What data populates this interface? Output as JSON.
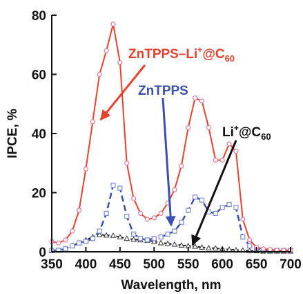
{
  "chart_data": {
    "type": "line",
    "xlabel": "Wavelength, nm",
    "ylabel": "IPCE, %",
    "xlim": [
      350,
      700
    ],
    "ylim": [
      0,
      80
    ],
    "xticks": [
      "350",
      "400",
      "450",
      "500",
      "550",
      "600",
      "650",
      "700"
    ],
    "yticks": [
      "0",
      "20",
      "40",
      "60",
      "80"
    ],
    "grid": false,
    "series": [
      {
        "name": "ZnTPPS–Li⁺@C₆₀",
        "color": "#e8412e",
        "marker": "circle",
        "x": [
          350,
          360,
          370,
          380,
          390,
          400,
          410,
          420,
          430,
          440,
          450,
          460,
          470,
          480,
          490,
          500,
          510,
          520,
          530,
          540,
          550,
          560,
          570,
          580,
          590,
          600,
          610,
          620,
          630,
          640,
          650,
          660,
          670,
          680,
          690,
          700
        ],
        "y": [
          3.5,
          3.0,
          4.0,
          7.0,
          14.0,
          28.0,
          44.0,
          60.0,
          68.0,
          77.0,
          64.0,
          30.0,
          18.0,
          13.0,
          11.0,
          11.5,
          13.0,
          16.5,
          21.0,
          29.0,
          42.0,
          52.0,
          51.0,
          42.0,
          31.0,
          31.0,
          36.5,
          34.0,
          11.0,
          4.0,
          1.5,
          1.0,
          0.8,
          0.5,
          0.5,
          0.5
        ]
      },
      {
        "name": "ZnTPPS",
        "color": "#3a4fb0",
        "marker": "square",
        "x": [
          350,
          360,
          370,
          380,
          390,
          400,
          410,
          420,
          430,
          440,
          450,
          460,
          470,
          480,
          490,
          500,
          510,
          520,
          530,
          540,
          550,
          560,
          570,
          580,
          590,
          600,
          610,
          620,
          630,
          640,
          650,
          660,
          670,
          680,
          690,
          700
        ],
        "y": [
          0.5,
          0.5,
          1.0,
          2.0,
          3.0,
          3.5,
          4.5,
          7.0,
          13.0,
          22.5,
          21.5,
          12.0,
          6.0,
          4.5,
          4.0,
          4.5,
          5.0,
          6.0,
          7.0,
          10.0,
          14.0,
          18.5,
          17.5,
          13.5,
          13.0,
          15.0,
          16.0,
          15.0,
          5.0,
          2.0,
          1.0,
          0.5,
          0.5,
          0.5,
          0.5,
          0.5
        ]
      },
      {
        "name": "Li⁺@C₆₀",
        "color": "#222222",
        "marker": "triangle",
        "x": [
          350,
          360,
          370,
          380,
          390,
          400,
          410,
          420,
          430,
          440,
          450,
          460,
          470,
          480,
          490,
          500,
          510,
          520,
          530,
          540,
          550,
          560,
          570,
          580,
          590,
          600,
          610,
          620,
          630,
          640,
          650,
          660,
          670,
          680,
          690,
          700
        ],
        "y": [
          0.3,
          0.5,
          1.0,
          2.0,
          3.0,
          4.0,
          5.0,
          5.8,
          5.6,
          5.5,
          5.0,
          4.5,
          4.2,
          4.0,
          3.8,
          3.5,
          3.0,
          2.8,
          2.5,
          2.2,
          2.0,
          1.8,
          1.5,
          1.3,
          1.2,
          1.0,
          0.8,
          0.6,
          0.5,
          0.4,
          0.3,
          0.2,
          0.2,
          0.2,
          0.2,
          0.2
        ]
      }
    ],
    "annotations": [
      {
        "text": "ZnTPPS–Li",
        "sup": "+",
        "mid": "@C",
        "sub": "60",
        "color": "#e8412e"
      },
      {
        "text": "ZnTPPS",
        "color": "#3a4fb0"
      },
      {
        "text": "Li",
        "sup": "+",
        "mid": "@C",
        "sub": "60",
        "color": "#111111"
      }
    ]
  }
}
